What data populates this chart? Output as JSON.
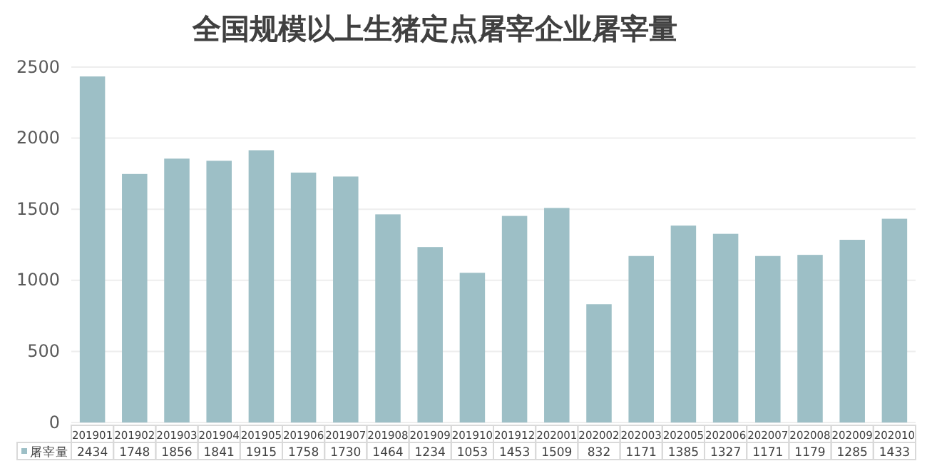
{
  "chart_data": {
    "type": "bar",
    "title": "全国规模以上生猪定点屠宰企业屠宰量",
    "categories": [
      "201901",
      "201902",
      "201903",
      "201904",
      "201905",
      "201906",
      "201907",
      "201908",
      "201909",
      "201910",
      "201912",
      "202001",
      "202002",
      "202003",
      "202005",
      "202006",
      "202007",
      "202008",
      "202009",
      "202010"
    ],
    "series": [
      {
        "name": "屠宰量",
        "color": "#9dbfc6",
        "values": [
          2434,
          1748,
          1856,
          1841,
          1915,
          1758,
          1730,
          1464,
          1234,
          1053,
          1453,
          1509,
          832,
          1171,
          1385,
          1327,
          1171,
          1179,
          1285,
          1433
        ]
      }
    ],
    "ylim": [
      0,
      2500
    ],
    "yticks": [
      0,
      500,
      1000,
      1500,
      2000,
      2500
    ],
    "grid": "y",
    "data_labels": true,
    "legend": "bottom"
  }
}
